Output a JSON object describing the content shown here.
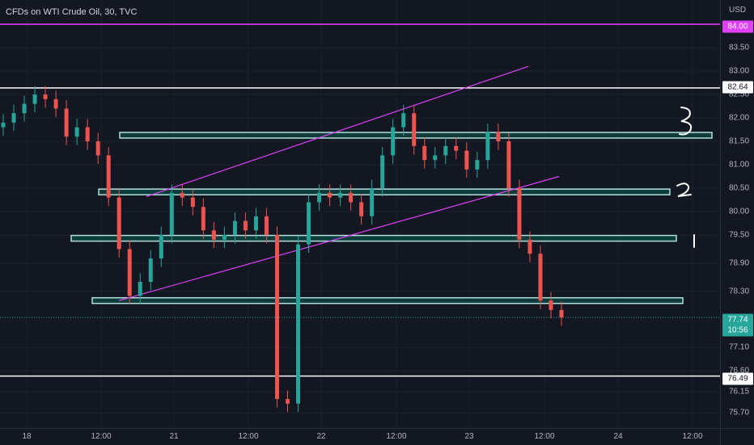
{
  "header": {
    "title": "CFDs on WTI Crude Oil, 30, TVC"
  },
  "price_axis": {
    "currency": "USD",
    "ticks": [
      "83.50",
      "83.00",
      "82.50",
      "82.00",
      "81.50",
      "81.00",
      "80.50",
      "80.00",
      "79.50",
      "78.90",
      "78.30",
      "77.10",
      "76.60",
      "76.15",
      "75.70"
    ],
    "labels": {
      "top_line": "84.00",
      "resistance": "82.64",
      "last_price": "77.74",
      "countdown": "10:56",
      "support": "76.49"
    }
  },
  "time_axis": {
    "ticks": [
      "18",
      "12:00",
      "21",
      "12:00",
      "22",
      "12:00",
      "23",
      "12:00",
      "24",
      "12:00"
    ]
  },
  "colors": {
    "background": "#131722",
    "up_candle": "#26a69a",
    "down_candle": "#ef5350",
    "magenta": "#e040fb",
    "zone_border": "#b2dfdb",
    "zone_fill": "#0e3c3c",
    "white_line": "#ffffff"
  },
  "annotations": {
    "marker_1": "1",
    "marker_2": "2",
    "marker_3": "3"
  },
  "chart_data": {
    "type": "candlestick",
    "symbol": "CFDs on WTI Crude Oil",
    "interval": "30",
    "source": "TVC",
    "ylim": [
      75.6,
      84.2
    ],
    "x_ticks": [
      "18",
      "12:00",
      "21",
      "12:00",
      "22",
      "12:00",
      "23",
      "12:00",
      "24",
      "12:00"
    ],
    "horizontal_lines": [
      {
        "price": 84.0,
        "color": "#e040fb"
      },
      {
        "price": 82.64,
        "color": "#ffffff"
      },
      {
        "price": 76.49,
        "color": "#ffffff"
      }
    ],
    "zones": [
      {
        "label": "3",
        "price": 81.63
      },
      {
        "label": "2",
        "price": 80.42
      },
      {
        "label": "1",
        "price": 79.43
      },
      {
        "label": "",
        "price": 78.1
      }
    ],
    "channel": {
      "upper": [
        {
          "x": "21 03:00",
          "y": 80.32
        },
        {
          "x": "23 17:00",
          "y": 83.1
        }
      ],
      "lower": [
        {
          "x": "20 14:00",
          "y": 78.1
        },
        {
          "x": "23 20:00",
          "y": 80.75
        }
      ]
    },
    "last_price": 77.74,
    "close_series": [
      81.9,
      82.1,
      82.3,
      82.5,
      82.4,
      82.2,
      81.6,
      81.8,
      81.5,
      81.2,
      80.3,
      79.2,
      78.2,
      78.5,
      79.0,
      79.5,
      80.4,
      80.3,
      80.1,
      79.6,
      79.4,
      79.5,
      79.8,
      79.6,
      79.9,
      79.5,
      76.0,
      75.9,
      79.3,
      80.2,
      80.4,
      80.3,
      80.4,
      80.2,
      79.9,
      80.5,
      81.2,
      81.8,
      82.1,
      81.4,
      81.1,
      81.2,
      81.4,
      81.3,
      80.9,
      81.1,
      81.7,
      81.5,
      80.5,
      79.4,
      79.1,
      78.1,
      77.9,
      77.74
    ]
  }
}
